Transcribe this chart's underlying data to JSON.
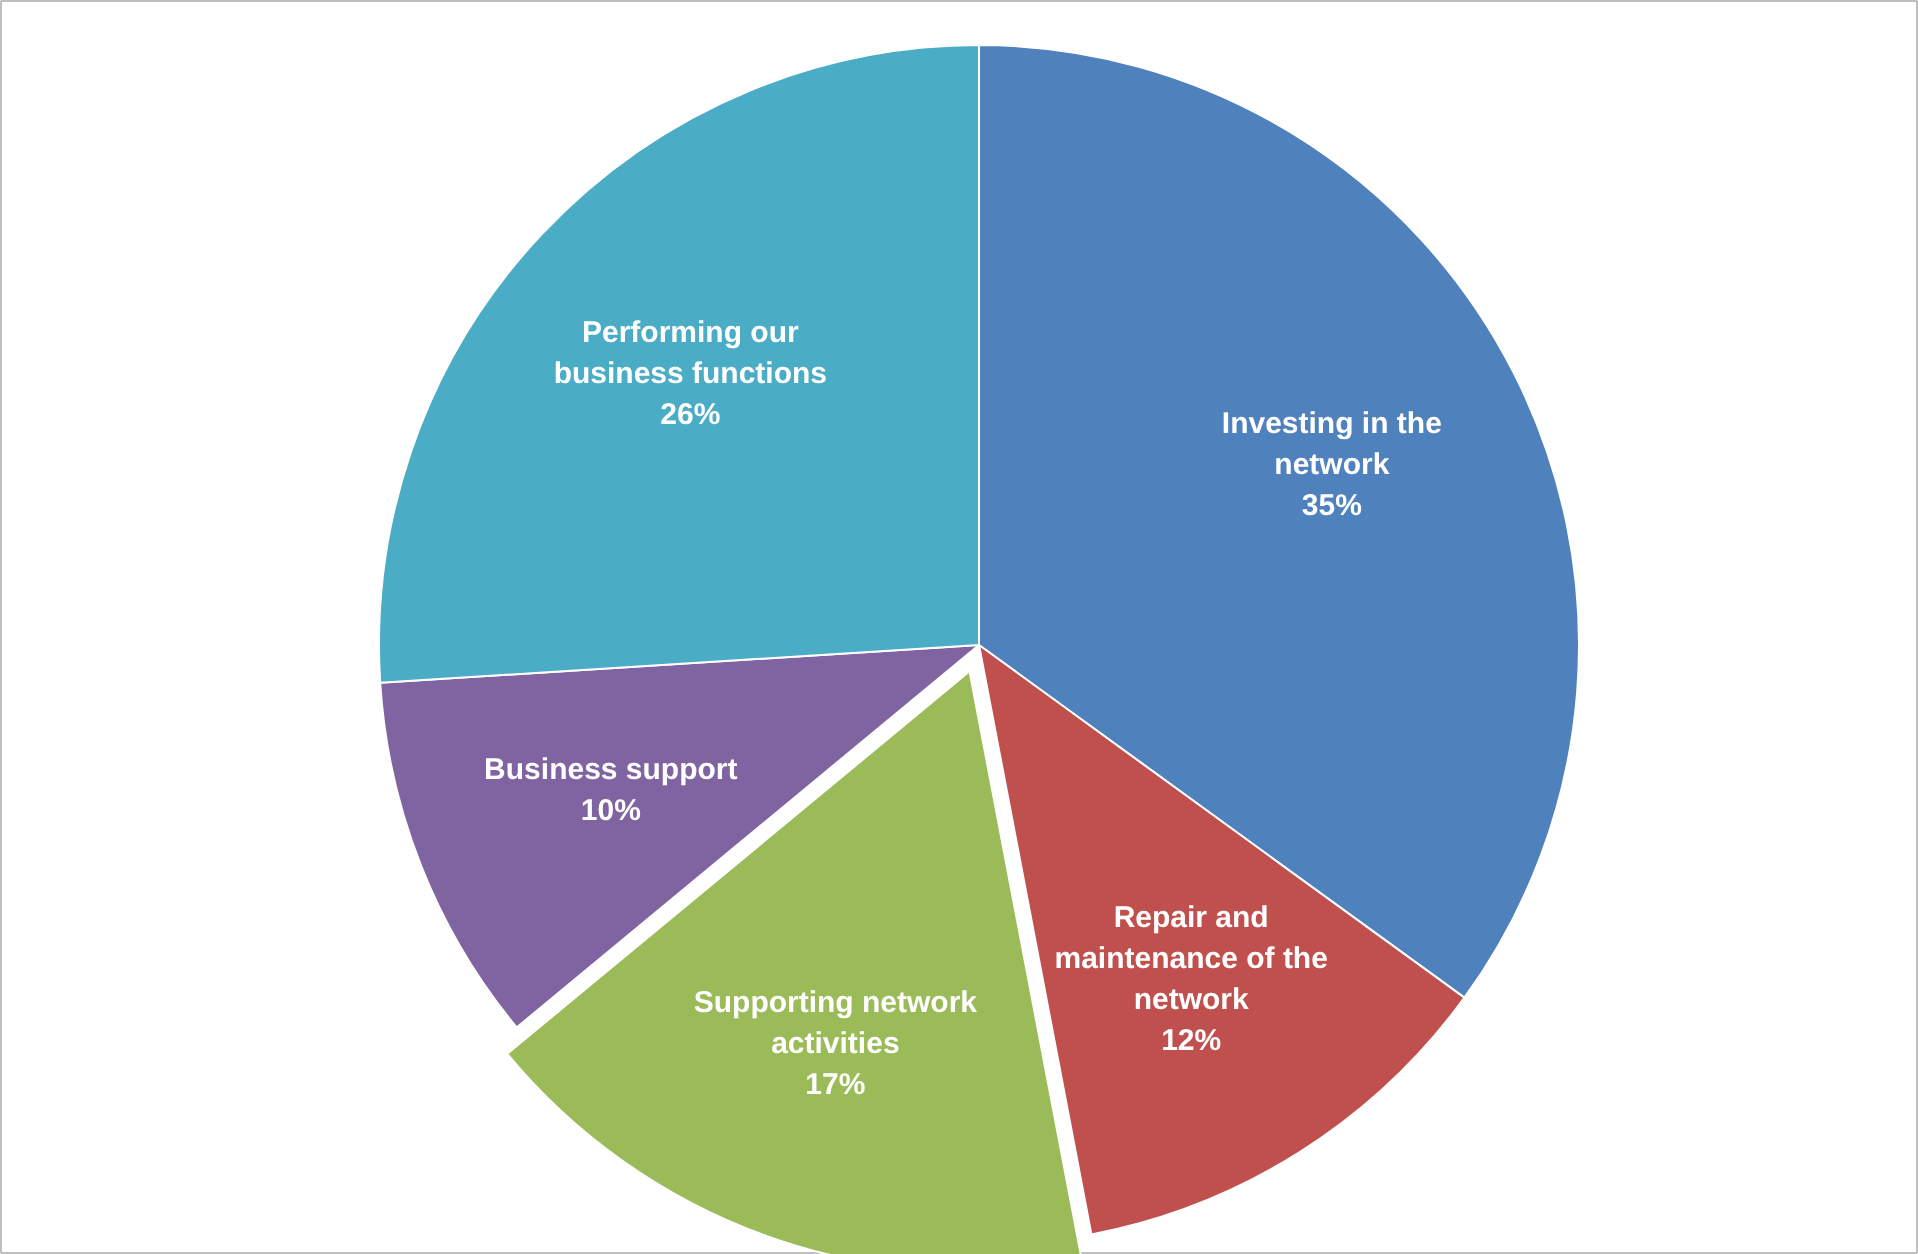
{
  "chart_data": {
    "type": "pie",
    "categories": [
      "Investing in the network",
      "Repair and maintenance of the network",
      "Supporting network activities",
      "Business support",
      "Performing our business functions"
    ],
    "values": [
      35,
      12,
      17,
      10,
      26
    ],
    "colors": [
      "#4f81bd",
      "#c0504d",
      "#9bbb59",
      "#8064a2",
      "#4bacc6"
    ],
    "value_labels": [
      "35%",
      "12%",
      "17%",
      "10%",
      "26%"
    ]
  }
}
